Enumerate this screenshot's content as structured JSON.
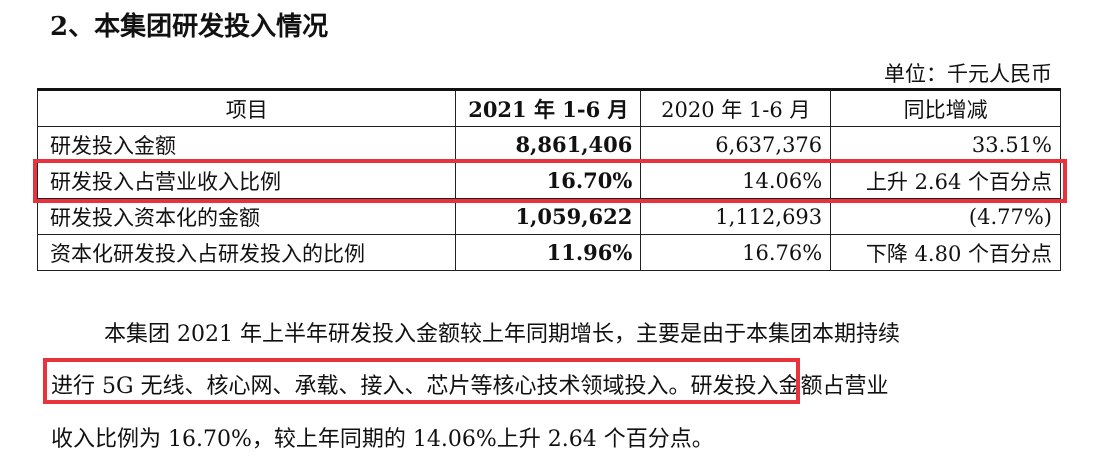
{
  "heading": "2、本集团研发投入情况",
  "unit_label": "单位：千元人民币",
  "table": {
    "headers": [
      "项目",
      "2021 年 1-6 月",
      "2020 年 1-6 月",
      "同比增减"
    ],
    "rows": [
      {
        "item": "研发投入金额",
        "y2021": "8,861,406",
        "y2020": "6,637,376",
        "change": "33.51%"
      },
      {
        "item": "研发投入占营业收入比例",
        "y2021": "16.70%",
        "y2020": "14.06%",
        "change": "上升 2.64 个百分点"
      },
      {
        "item": "研发投入资本化的金额",
        "y2021": "1,059,622",
        "y2020": "1,112,693",
        "change": "(4.77%)"
      },
      {
        "item": "资本化研发投入占研发投入的比例",
        "y2021": "11.96%",
        "y2020": "16.76%",
        "change": "下降 4.80 个百分点"
      }
    ]
  },
  "paragraph": {
    "line1": "本集团 2021 年上半年研发投入金额较上年同期增长，主要是由于本集团本期持续",
    "line2": "进行 5G 无线、核心网、承载、接入、芯片等核心技术领域投入。研发投入金额占营业",
    "line3": "收入比例为 16.70%，较上年同期的 14.06%上升 2.64 个百分点。"
  },
  "highlight_color": "#e8323c"
}
